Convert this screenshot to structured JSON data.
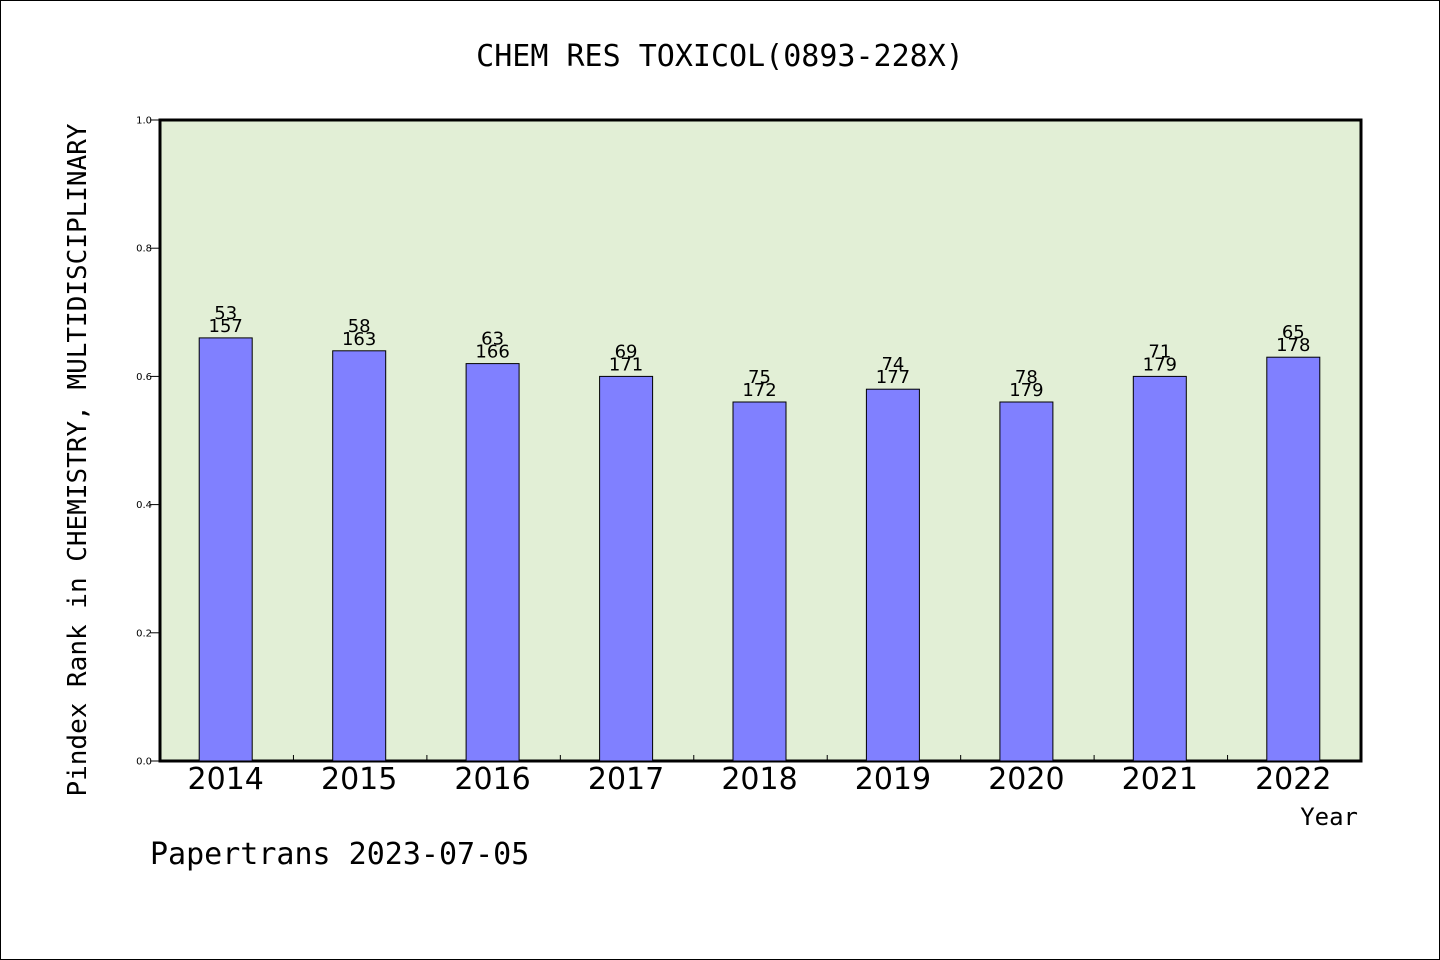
{
  "chart_data": {
    "type": "bar",
    "title": "CHEM RES TOXICOL(0893-228X)",
    "xlabel": "Year",
    "ylabel": "Pindex Rank in CHEMISTRY, MULTIDISCIPLINARY",
    "ylim": [
      0,
      1.0
    ],
    "yticks": [
      "0.0",
      "0.2",
      "0.4",
      "0.6",
      "0.8",
      "1.0"
    ],
    "categories": [
      "2014",
      "2015",
      "2016",
      "2017",
      "2018",
      "2019",
      "2020",
      "2021",
      "2022"
    ],
    "values": [
      0.66,
      0.64,
      0.62,
      0.6,
      0.56,
      0.58,
      0.56,
      0.6,
      0.63
    ],
    "rank": [
      "53",
      "58",
      "63",
      "69",
      "75",
      "74",
      "78",
      "71",
      "65"
    ],
    "total": [
      "157",
      "163",
      "166",
      "171",
      "172",
      "177",
      "179",
      "179",
      "178"
    ],
    "grid": false,
    "colors": {
      "background": "#e2efd6",
      "bar": "#8080ff",
      "axis": "#000000"
    }
  },
  "footer": "Papertrans 2023-07-05"
}
